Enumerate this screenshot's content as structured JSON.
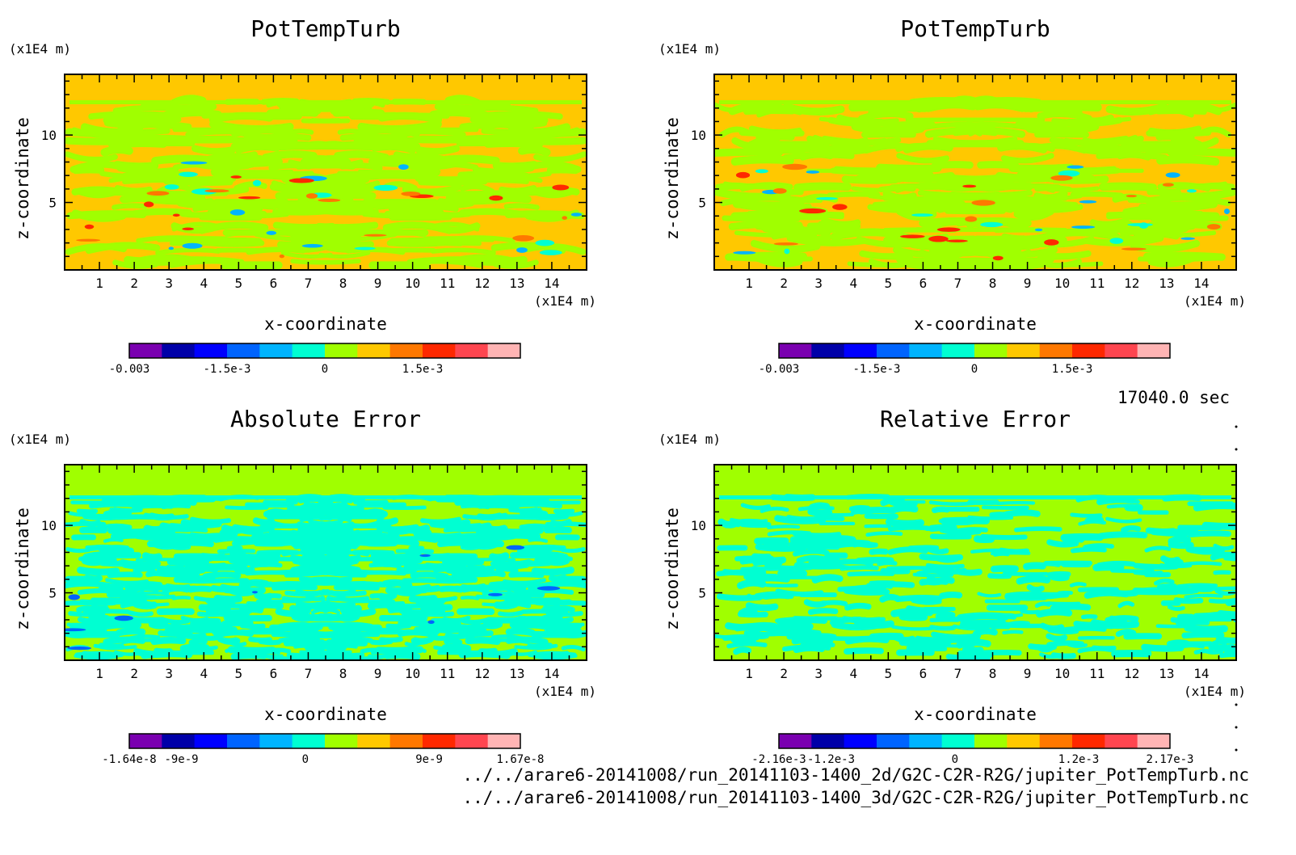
{
  "chart_data": [
    {
      "type": "heatmap",
      "title": "PotTempTurb",
      "xlabel": "x-coordinate",
      "ylabel": "z-coordinate",
      "x_unit": "(x1E4 m)",
      "y_unit": "(x1E4 m)",
      "x_ticks": [
        "1",
        "2",
        "3",
        "4",
        "5",
        "6",
        "7",
        "8",
        "9",
        "10",
        "11",
        "12",
        "13",
        "14"
      ],
      "y_ticks": [
        "5",
        "10"
      ],
      "xlim": [
        0,
        15
      ],
      "ylim": [
        0,
        14.5
      ],
      "colorbar": {
        "colors": [
          "#7a00b0",
          "#0000a8",
          "#0000ff",
          "#0064ff",
          "#00b4ff",
          "#00ffd2",
          "#a0ff00",
          "#ffc800",
          "#ff7800",
          "#ff2800",
          "#ff4650",
          "#ffb4b4"
        ],
        "ticks": [
          "-0.003",
          "-1.5e-3",
          "0",
          "1.5e-3"
        ],
        "tick_positions": [
          0,
          3,
          6,
          9
        ]
      },
      "fill": {
        "background": "#ffc800",
        "pattern": "#a0ff00",
        "accents": [
          "#00ffd2",
          "#00b4ff",
          "#ff2800",
          "#ff7800"
        ]
      }
    },
    {
      "type": "heatmap",
      "title": "PotTempTurb",
      "xlabel": "x-coordinate",
      "ylabel": "z-coordinate",
      "x_unit": "(x1E4 m)",
      "y_unit": "(x1E4 m)",
      "x_ticks": [
        "1",
        "2",
        "3",
        "4",
        "5",
        "6",
        "7",
        "8",
        "9",
        "10",
        "11",
        "12",
        "13",
        "14"
      ],
      "y_ticks": [
        "5",
        "10"
      ],
      "xlim": [
        0,
        15
      ],
      "ylim": [
        0,
        14.5
      ],
      "colorbar": {
        "colors": [
          "#7a00b0",
          "#0000a8",
          "#0000ff",
          "#0064ff",
          "#00b4ff",
          "#00ffd2",
          "#a0ff00",
          "#ffc800",
          "#ff7800",
          "#ff2800",
          "#ff4650",
          "#ffb4b4"
        ],
        "ticks": [
          "-0.003",
          "-1.5e-3",
          "0",
          "1.5e-3"
        ],
        "tick_positions": [
          0,
          3,
          6,
          9
        ]
      },
      "fill": {
        "background": "#ffc800",
        "pattern": "#a0ff00",
        "accents": [
          "#00ffd2",
          "#00b4ff",
          "#ff2800",
          "#ff7800"
        ]
      }
    },
    {
      "type": "heatmap",
      "title": "Absolute Error",
      "xlabel": "x-coordinate",
      "ylabel": "z-coordinate",
      "x_unit": "(x1E4 m)",
      "y_unit": "(x1E4 m)",
      "x_ticks": [
        "1",
        "2",
        "3",
        "4",
        "5",
        "6",
        "7",
        "8",
        "9",
        "10",
        "11",
        "12",
        "13",
        "14"
      ],
      "y_ticks": [
        "5",
        "10"
      ],
      "xlim": [
        0,
        15
      ],
      "ylim": [
        0,
        14.5
      ],
      "colorbar": {
        "colors": [
          "#7a00b0",
          "#0000a8",
          "#0000ff",
          "#0064ff",
          "#00b4ff",
          "#00ffd2",
          "#a0ff00",
          "#ffc800",
          "#ff7800",
          "#ff2800",
          "#ff4650",
          "#ffb4b4"
        ],
        "ticks": [
          "-1.64e-8",
          "-9e-9",
          "0",
          "9e-9",
          "1.67e-8"
        ],
        "tick_positions": [
          0,
          1.6,
          5.4,
          9.2,
          12
        ]
      },
      "fill": {
        "background": "#a0ff00",
        "pattern": "#00ffd2",
        "accents": [
          "#0064ff"
        ]
      }
    },
    {
      "type": "heatmap",
      "title": "Relative Error",
      "xlabel": "x-coordinate",
      "ylabel": "z-coordinate",
      "x_unit": "(x1E4 m)",
      "y_unit": "(x1E4 m)",
      "x_ticks": [
        "1",
        "2",
        "3",
        "4",
        "5",
        "6",
        "7",
        "8",
        "9",
        "10",
        "11",
        "12",
        "13",
        "14"
      ],
      "y_ticks": [
        "5",
        "10"
      ],
      "xlim": [
        0,
        15
      ],
      "ylim": [
        0,
        14.5
      ],
      "colorbar": {
        "colors": [
          "#7a00b0",
          "#0000a8",
          "#0000ff",
          "#0064ff",
          "#00b4ff",
          "#00ffd2",
          "#a0ff00",
          "#ffc800",
          "#ff7800",
          "#ff2800",
          "#ff4650",
          "#ffb4b4"
        ],
        "ticks": [
          "-2.16e-3",
          "-1.2e-3",
          "0",
          "1.2e-3",
          "2.17e-3"
        ],
        "tick_positions": [
          0,
          1.6,
          5.4,
          9.2,
          12
        ]
      },
      "fill": {
        "background": "#a0ff00",
        "pattern": "#00ffd2",
        "accents": []
      }
    }
  ],
  "info": {
    "time": "17040.0 sec",
    "file1": "../../arare6-20141008/run_20141103-1400_2d/G2C-C2R-R2G/jupiter_PotTempTurb.nc",
    "file2": "../../arare6-20141008/run_20141103-1400_3d/G2C-C2R-R2G/jupiter_PotTempTurb.nc"
  }
}
